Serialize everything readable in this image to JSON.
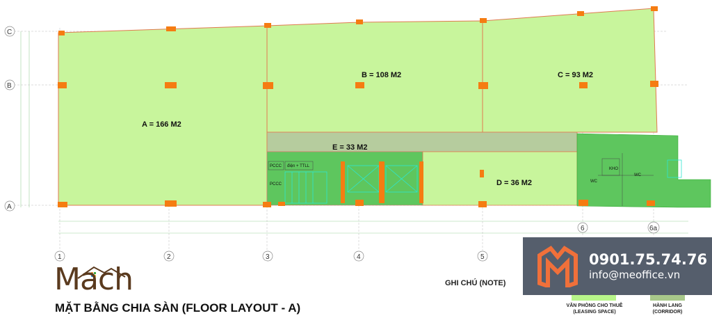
{
  "plan": {
    "grid_rows": [
      "C",
      "B",
      "A"
    ],
    "grid_cols": [
      "1",
      "2",
      "3",
      "4",
      "5",
      "6",
      "6a"
    ],
    "areas": {
      "A": "A = 166 M2",
      "B": "B = 108 M2",
      "C": "C = 93 M2",
      "D": "D = 36 M2",
      "E": "E = 33 M2"
    },
    "rooms": {
      "pccc1": "PCCC",
      "pccc2": "PCCC",
      "elec": "điện + TTLL",
      "kho": "KHO",
      "wc1": "WC",
      "wc2": "WC"
    }
  },
  "colors": {
    "leasing": "#c8f59c",
    "corridor": "#b6cc9e",
    "core": "#5ec65e",
    "column": "#f57c12",
    "overlay": "#3e4858",
    "logo_brown": "#5a3a1e"
  },
  "logo": {
    "text": "Mach"
  },
  "title": "MẶT BẰNG CHIA SÀN (FLOOR LAYOUT - A)",
  "legend": {
    "heading": "GHI CHÚ (NOTE)",
    "leasing": "VĂN PHÒNG CHO THUÊ\n(LEASING SPACE)",
    "corridor": "HÀNH LANG\n(CORRIDOR)"
  },
  "contact": {
    "phone": "0901.75.74.76",
    "email": "info@meoffice.vn",
    "brand_icon": "meoffice-m-logo"
  }
}
